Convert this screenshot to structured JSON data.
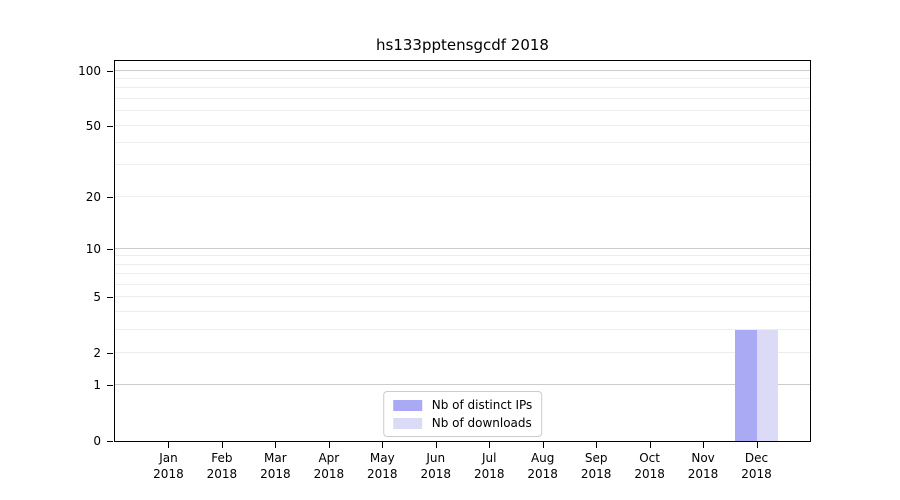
{
  "figure": {
    "background": "#ffffff"
  },
  "chart_data": {
    "type": "bar",
    "title": "hs133pptensgcdf 2018",
    "xlabel": "",
    "ylabel": "",
    "categories": [
      "Jan 2018",
      "Feb 2018",
      "Mar 2018",
      "Apr 2018",
      "May 2018",
      "Jun 2018",
      "Jul 2018",
      "Aug 2018",
      "Sep 2018",
      "Oct 2018",
      "Nov 2018",
      "Dec 2018"
    ],
    "series": [
      {
        "name": "Nb of distinct IPs",
        "color": "#a9a9f4",
        "values": [
          0,
          0,
          0,
          0,
          0,
          0,
          0,
          0,
          0,
          0,
          0,
          3
        ]
      },
      {
        "name": "Nb of downloads",
        "color": "#dbdbf7",
        "values": [
          0,
          0,
          0,
          0,
          0,
          0,
          0,
          0,
          0,
          0,
          0,
          3
        ]
      }
    ],
    "yscale": "log1p",
    "ylim": [
      0,
      113
    ],
    "yticks": [
      {
        "value": 0,
        "label": "0"
      },
      {
        "value": 1,
        "label": "1"
      },
      {
        "value": 2,
        "label": "2"
      },
      {
        "value": 5,
        "label": "5"
      },
      {
        "value": 10,
        "label": "10"
      },
      {
        "value": 20,
        "label": "20"
      },
      {
        "value": 50,
        "label": "50"
      },
      {
        "value": 100,
        "label": "100"
      }
    ],
    "major_gridlines": [
      1,
      10,
      100
    ],
    "minor_gridlines": [
      2,
      3,
      4,
      5,
      6,
      7,
      8,
      9,
      20,
      30,
      40,
      50,
      60,
      70,
      80,
      90
    ],
    "grid": true,
    "legend_position": "lower center",
    "colors": {
      "major_grid": "#cccccc",
      "minor_grid": "#ededed",
      "axis": "#000000",
      "text": "#000000"
    }
  }
}
